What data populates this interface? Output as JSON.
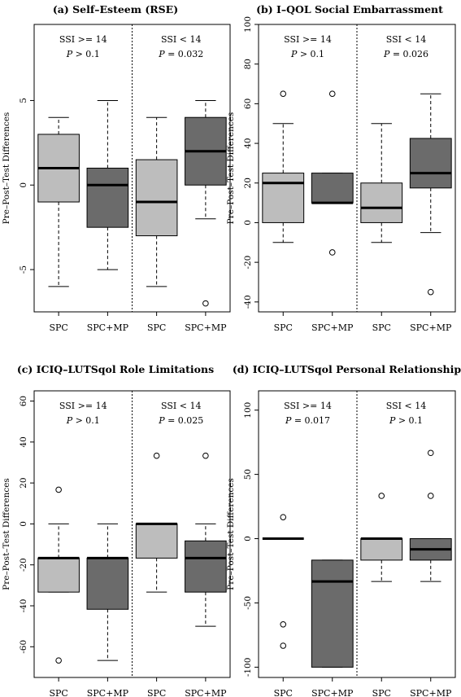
{
  "chart_data": [
    {
      "type": "boxplot",
      "title": "(a) Self–Esteem (RSE)",
      "ylabel": "Pre–Post–Test Differences",
      "ylim": [
        -7.5,
        9.5
      ],
      "yticks": [
        -5,
        0,
        5
      ],
      "categories": [
        "SPC",
        "SPC+MP",
        "SPC",
        "SPC+MP"
      ],
      "groups": [
        {
          "label": "SSI >= 14",
          "p_label": "P",
          "p_text": " > 0.1"
        },
        {
          "label": "SSI < 14",
          "p_label": "P",
          "p_text": " = 0.032"
        }
      ],
      "boxes": [
        {
          "fill": "#bdbdbd",
          "whisker_low": -6,
          "q1": -1,
          "median": 1,
          "q3": 3,
          "whisker_high": 4,
          "outliers": []
        },
        {
          "fill": "#6b6b6b",
          "whisker_low": -5,
          "q1": -2.5,
          "median": 0,
          "q3": 1,
          "whisker_high": 5,
          "outliers": []
        },
        {
          "fill": "#bdbdbd",
          "whisker_low": -6,
          "q1": -3,
          "median": -1,
          "q3": 1.5,
          "whisker_high": 4,
          "outliers": []
        },
        {
          "fill": "#6b6b6b",
          "whisker_low": -2,
          "q1": 0,
          "median": 2,
          "q3": 4,
          "whisker_high": 5,
          "outliers": [
            -7
          ]
        }
      ]
    },
    {
      "type": "boxplot",
      "title": "(b) I–QOL Social Embarrassment",
      "ylabel": "Pre–Post–Test Differences",
      "ylim": [
        -45,
        100
      ],
      "yticks": [
        -40,
        -20,
        0,
        20,
        40,
        60,
        80,
        100
      ],
      "categories": [
        "SPC",
        "SPC+MP",
        "SPC",
        "SPC+MP"
      ],
      "groups": [
        {
          "label": "SSI >= 14",
          "p_label": "P",
          "p_text": " > 0.1"
        },
        {
          "label": "SSI < 14",
          "p_label": "P",
          "p_text": " = 0.026"
        }
      ],
      "boxes": [
        {
          "fill": "#bdbdbd",
          "whisker_low": -10,
          "q1": 0,
          "median": 20,
          "q3": 25,
          "whisker_high": 50,
          "outliers": [
            65
          ]
        },
        {
          "fill": "#6b6b6b",
          "whisker_low": 10,
          "q1": 10,
          "median": 10,
          "q3": 25,
          "whisker_high": 25,
          "outliers": [
            65,
            -15
          ]
        },
        {
          "fill": "#bdbdbd",
          "whisker_low": -10,
          "q1": 0,
          "median": 7.5,
          "q3": 20,
          "whisker_high": 50,
          "outliers": []
        },
        {
          "fill": "#6b6b6b",
          "whisker_low": -5,
          "q1": 17.5,
          "median": 25,
          "q3": 42.5,
          "whisker_high": 65,
          "outliers": [
            -35
          ]
        }
      ]
    },
    {
      "type": "boxplot",
      "title": "(c) ICIQ–LUTSqol Role Limitations",
      "ylabel": "Pre–Post–Test Differences",
      "ylim": [
        -75,
        65
      ],
      "yticks": [
        -60,
        -40,
        -20,
        0,
        20,
        40,
        60
      ],
      "categories": [
        "SPC",
        "SPC+MP",
        "SPC",
        "SPC+MP"
      ],
      "groups": [
        {
          "label": "SSI >= 14",
          "p_label": "P",
          "p_text": " > 0.1"
        },
        {
          "label": "SSI < 14",
          "p_label": "P",
          "p_text": " = 0.025"
        }
      ],
      "boxes": [
        {
          "fill": "#bdbdbd",
          "whisker_low": -33.3,
          "q1": -33.3,
          "median": -16.7,
          "q3": -16.7,
          "whisker_high": 0,
          "outliers": [
            16.7,
            -66.7
          ]
        },
        {
          "fill": "#6b6b6b",
          "whisker_low": -66.7,
          "q1": -41.7,
          "median": -16.7,
          "q3": -16.7,
          "whisker_high": 0,
          "outliers": []
        },
        {
          "fill": "#bdbdbd",
          "whisker_low": -33.3,
          "q1": -16.7,
          "median": 0,
          "q3": 0,
          "whisker_high": 0,
          "outliers": [
            33.3
          ]
        },
        {
          "fill": "#6b6b6b",
          "whisker_low": -50,
          "q1": -33.3,
          "median": -16.7,
          "q3": -8.3,
          "whisker_high": 0,
          "outliers": [
            33.3
          ]
        }
      ]
    },
    {
      "type": "boxplot",
      "title": "(d) ICIQ–LUTSqol Personal Relationships",
      "ylabel": "Pre–Post–Test Differences",
      "ylim": [
        -108,
        115
      ],
      "yticks": [
        -100,
        -50,
        0,
        50,
        100
      ],
      "categories": [
        "SPC",
        "SPC+MP",
        "SPC",
        "SPC+MP"
      ],
      "groups": [
        {
          "label": "SSI >= 14",
          "p_label": "P",
          "p_text": " = 0.017"
        },
        {
          "label": "SSI < 14",
          "p_label": "P",
          "p_text": " > 0.1"
        }
      ],
      "boxes": [
        {
          "fill": "#bdbdbd",
          "whisker_low": 0,
          "q1": 0,
          "median": 0,
          "q3": 0,
          "whisker_high": 0,
          "outliers": [
            16.7,
            -66.7,
            -83.3
          ]
        },
        {
          "fill": "#6b6b6b",
          "whisker_low": -100,
          "q1": -100,
          "median": -33.3,
          "q3": -16.7,
          "whisker_high": -16.7,
          "outliers": []
        },
        {
          "fill": "#bdbdbd",
          "whisker_low": -33.3,
          "q1": -16.7,
          "median": 0,
          "q3": 0,
          "whisker_high": 0,
          "outliers": [
            33.3
          ]
        },
        {
          "fill": "#6b6b6b",
          "whisker_low": -33.3,
          "q1": -16.7,
          "median": -8.3,
          "q3": 0,
          "whisker_high": 0,
          "outliers": [
            66.7,
            33.3
          ]
        }
      ]
    }
  ]
}
